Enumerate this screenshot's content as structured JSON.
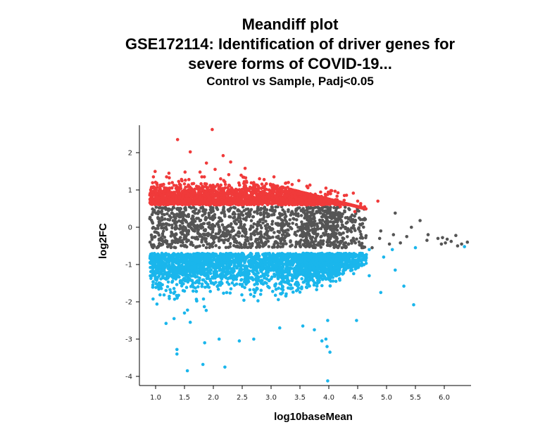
{
  "chart_data": {
    "type": "scatter",
    "title_lines": [
      "Meandiff plot",
      "GSE172114: Identification of driver genes for",
      "severe forms of COVID-19..."
    ],
    "subtitle": "Control vs Sample, Padj<0.05",
    "xlabel": "log10baseMean",
    "ylabel": "log2FC",
    "xlim": [
      0.8,
      6.45
    ],
    "ylim": [
      -4.2,
      2.85
    ],
    "xticks": [
      "1.0",
      "1.5",
      "2.0",
      "2.5",
      "3.0",
      "3.5",
      "4.0",
      "4.5",
      "5.0",
      "5.5",
      "6.0"
    ],
    "yticks": [
      "2",
      "1",
      "0",
      "-1",
      "-2",
      "-3",
      "-4"
    ],
    "colors": {
      "up": "#f03a3a",
      "down": "#1ab6ec",
      "ns": "#555555"
    },
    "series": [
      {
        "key": "up",
        "points": [
          [
            1.38,
            2.35
          ],
          [
            1.98,
            2.62
          ],
          [
            1.6,
            2.02
          ],
          [
            2.17,
            1.92
          ],
          [
            1.88,
            1.72
          ],
          [
            2.3,
            1.75
          ],
          [
            2.55,
            1.58
          ],
          [
            2.03,
            1.55
          ],
          [
            1.77,
            1.48
          ],
          [
            1.51,
            1.48
          ],
          [
            1.23,
            1.45
          ],
          [
            3.05,
            1.35
          ],
          [
            2.8,
            1.3
          ],
          [
            3.48,
            1.25
          ],
          [
            3.3,
            1.2
          ],
          [
            3.62,
            1.1
          ],
          [
            3.95,
            1.05
          ],
          [
            4.05,
            0.98
          ],
          [
            4.27,
            0.85
          ],
          [
            4.5,
            0.7
          ],
          [
            4.85,
            0.7
          ],
          [
            4.62,
            0.55
          ],
          [
            4.38,
            0.6
          ],
          [
            4.2,
            0.55
          ],
          [
            4.45,
            0.42
          ]
        ]
      },
      {
        "key": "down",
        "points": [
          [
            1.37,
            -3.28
          ],
          [
            1.37,
            -3.4
          ],
          [
            1.55,
            -3.85
          ],
          [
            1.82,
            -3.68
          ],
          [
            2.2,
            -3.75
          ],
          [
            1.85,
            -3.1
          ],
          [
            2.1,
            -3.0
          ],
          [
            2.45,
            -3.05
          ],
          [
            2.7,
            -3.0
          ],
          [
            3.15,
            -2.7
          ],
          [
            3.55,
            -2.65
          ],
          [
            3.75,
            -2.75
          ],
          [
            3.98,
            -2.5
          ],
          [
            3.88,
            -3.05
          ],
          [
            3.95,
            -3.0
          ],
          [
            3.98,
            -4.12
          ],
          [
            3.97,
            -3.2
          ],
          [
            4.02,
            -3.35
          ],
          [
            1.18,
            -2.58
          ],
          [
            1.32,
            -2.45
          ],
          [
            1.5,
            -2.3
          ],
          [
            1.6,
            -2.55
          ],
          [
            4.48,
            -2.5
          ],
          [
            5.47,
            -2.08
          ],
          [
            4.9,
            -1.75
          ],
          [
            5.3,
            -1.58
          ],
          [
            5.15,
            -1.15
          ],
          [
            4.95,
            -0.8
          ],
          [
            5.1,
            -0.6
          ],
          [
            5.5,
            -0.55
          ],
          [
            6.35,
            -0.52
          ],
          [
            4.7,
            -0.6
          ],
          [
            4.55,
            -1.0
          ],
          [
            4.4,
            -1.15
          ],
          [
            4.7,
            -1.3
          ]
        ]
      },
      {
        "key": "ns",
        "points": [
          [
            5.15,
            0.38
          ],
          [
            5.58,
            0.18
          ],
          [
            5.43,
            0.0
          ],
          [
            5.72,
            -0.2
          ],
          [
            6.2,
            -0.22
          ],
          [
            5.97,
            -0.28
          ],
          [
            6.05,
            -0.32
          ],
          [
            5.89,
            -0.3
          ],
          [
            6.12,
            -0.38
          ],
          [
            6.02,
            -0.42
          ],
          [
            6.3,
            -0.45
          ],
          [
            6.4,
            -0.4
          ],
          [
            6.23,
            -0.5
          ],
          [
            5.95,
            -0.45
          ],
          [
            5.7,
            -0.35
          ],
          [
            5.35,
            -0.25
          ],
          [
            5.24,
            -0.42
          ],
          [
            5.05,
            -0.45
          ],
          [
            4.88,
            -0.3
          ],
          [
            4.75,
            -0.55
          ],
          [
            4.62,
            0.2
          ],
          [
            4.9,
            -0.1
          ],
          [
            5.12,
            -0.2
          ]
        ]
      }
    ]
  }
}
